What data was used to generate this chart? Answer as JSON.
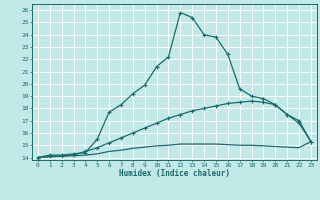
{
  "xlabel": "Humidex (Indice chaleur)",
  "bg_color": "#c2e8e8",
  "line_color": "#1a6b6b",
  "grid_color": "#ffffff",
  "xlim": [
    -0.5,
    23.5
  ],
  "ylim": [
    13.8,
    26.5
  ],
  "xticks": [
    0,
    1,
    2,
    3,
    4,
    5,
    6,
    7,
    8,
    9,
    10,
    11,
    12,
    13,
    14,
    15,
    16,
    17,
    18,
    19,
    20,
    21,
    22,
    23
  ],
  "yticks": [
    14,
    15,
    16,
    17,
    18,
    19,
    20,
    21,
    22,
    23,
    24,
    25,
    26
  ],
  "curve1_x": [
    0,
    1,
    2,
    3,
    4,
    5,
    6,
    7,
    8,
    9,
    10,
    11,
    12,
    13,
    14,
    15,
    16,
    17,
    18,
    19,
    20,
    21,
    22,
    23
  ],
  "curve1_y": [
    14.0,
    14.2,
    14.2,
    14.3,
    14.4,
    15.5,
    17.7,
    18.3,
    19.2,
    19.9,
    21.4,
    22.2,
    25.8,
    25.4,
    24.0,
    23.8,
    22.4,
    19.6,
    19.0,
    18.8,
    18.3,
    17.5,
    17.0,
    15.3
  ],
  "curve2_x": [
    0,
    1,
    2,
    3,
    4,
    5,
    6,
    7,
    8,
    9,
    10,
    11,
    12,
    13,
    14,
    15,
    16,
    17,
    18,
    19,
    20,
    21,
    22,
    23
  ],
  "curve2_y": [
    14.0,
    14.1,
    14.15,
    14.2,
    14.5,
    14.8,
    15.2,
    15.6,
    16.0,
    16.4,
    16.8,
    17.2,
    17.5,
    17.8,
    18.0,
    18.2,
    18.4,
    18.5,
    18.6,
    18.5,
    18.3,
    17.5,
    16.8,
    15.3
  ],
  "curve3_x": [
    0,
    1,
    2,
    3,
    4,
    5,
    6,
    7,
    8,
    9,
    10,
    11,
    12,
    13,
    14,
    15,
    16,
    17,
    18,
    19,
    20,
    21,
    22,
    23
  ],
  "curve3_y": [
    14.0,
    14.05,
    14.1,
    14.15,
    14.2,
    14.3,
    14.5,
    14.6,
    14.75,
    14.85,
    14.95,
    15.0,
    15.1,
    15.1,
    15.1,
    15.1,
    15.05,
    15.0,
    15.0,
    14.95,
    14.9,
    14.85,
    14.8,
    15.3
  ]
}
